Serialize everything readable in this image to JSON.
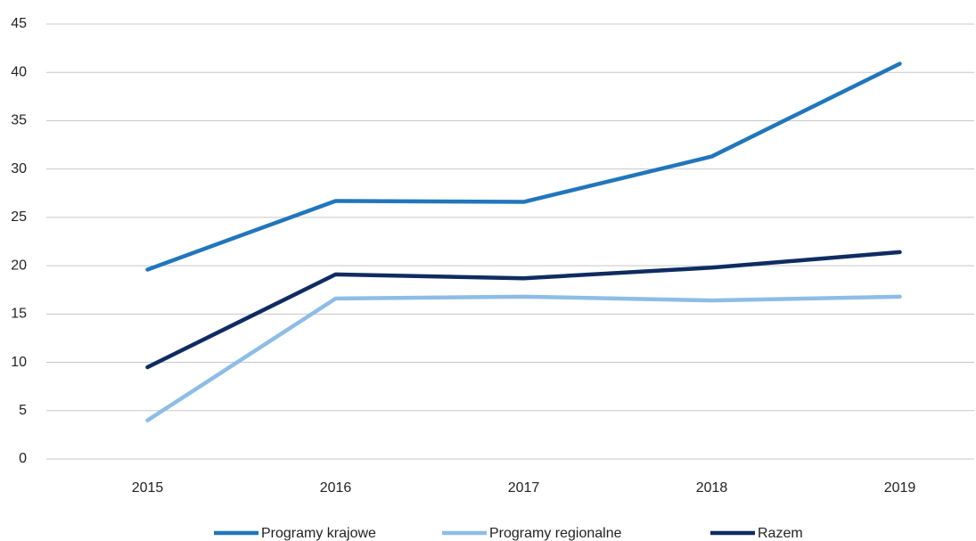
{
  "chart_data": {
    "type": "line",
    "categories": [
      "2015",
      "2016",
      "2017",
      "2018",
      "2019"
    ],
    "series": [
      {
        "name": "Programy krajowe",
        "color": "#2176bc",
        "values": [
          19.6,
          26.7,
          26.6,
          31.3,
          40.9
        ]
      },
      {
        "name": "Programy regionalne",
        "color": "#8dbde6",
        "values": [
          4.0,
          16.6,
          16.8,
          16.4,
          16.8
        ]
      },
      {
        "name": "Razem",
        "color": "#0f2c61",
        "values": [
          9.5,
          19.1,
          18.7,
          19.8,
          21.4
        ]
      }
    ],
    "ylim": [
      0,
      45
    ],
    "yticks": [
      0,
      5,
      10,
      15,
      20,
      25,
      30,
      35,
      40,
      45
    ],
    "grid": true,
    "legend": "bottom"
  }
}
